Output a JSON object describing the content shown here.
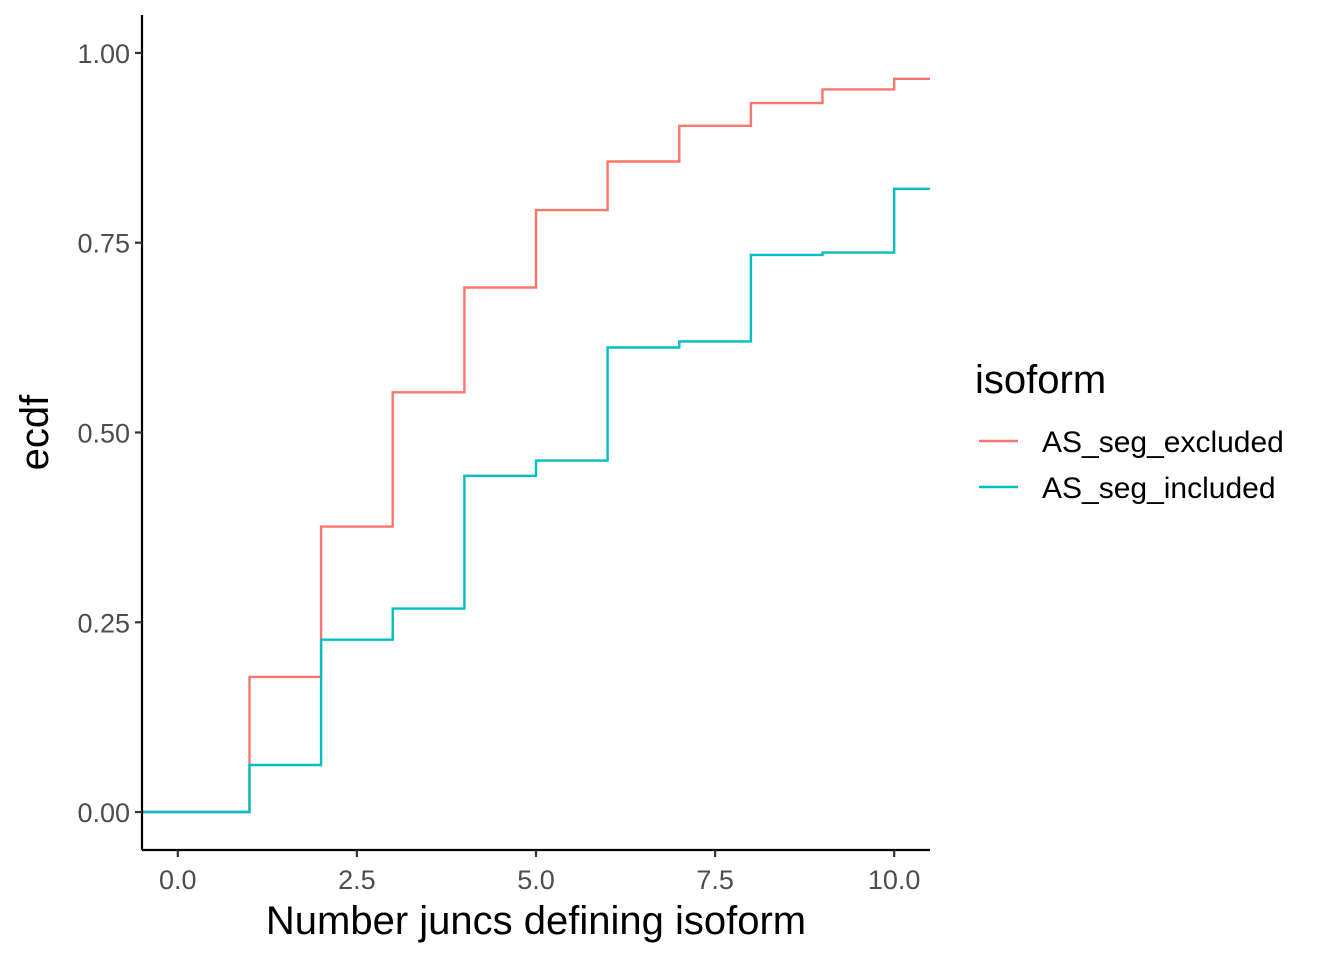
{
  "chart_data": {
    "type": "line",
    "step": true,
    "title": "",
    "xlabel": "Number juncs defining isoform",
    "ylabel": "ecdf",
    "xlim": [
      -0.5,
      10.5
    ],
    "ylim": [
      -0.05,
      1.05
    ],
    "x_ticks": [
      0,
      2.5,
      5,
      7.5,
      10
    ],
    "x_tick_labels": [
      "0.0",
      "2.5",
      "5.0",
      "7.5",
      "10.0"
    ],
    "y_ticks": [
      0,
      0.25,
      0.5,
      0.75,
      1
    ],
    "y_tick_labels": [
      "0.00",
      "0.25",
      "0.50",
      "0.75",
      "1.00"
    ],
    "grid": false,
    "legend": {
      "title": "isoform",
      "position": "right"
    },
    "series": [
      {
        "name": "AS_seg_excluded",
        "color": "#F8766D",
        "x": [
          -0.5,
          0,
          1,
          2,
          3,
          4,
          5,
          6,
          7,
          8,
          9,
          10,
          10.5
        ],
        "y": [
          0,
          0,
          0.178,
          0.376,
          0.553,
          0.691,
          0.793,
          0.857,
          0.904,
          0.934,
          0.952,
          0.966,
          0.966
        ]
      },
      {
        "name": "AS_seg_included",
        "color": "#00BFC4",
        "x": [
          -0.5,
          0,
          1,
          2,
          3,
          4,
          5,
          6,
          7,
          8,
          9,
          10,
          10.5
        ],
        "y": [
          0,
          0,
          0.062,
          0.227,
          0.268,
          0.443,
          0.463,
          0.612,
          0.62,
          0.734,
          0.737,
          0.821,
          0.821
        ]
      }
    ]
  }
}
